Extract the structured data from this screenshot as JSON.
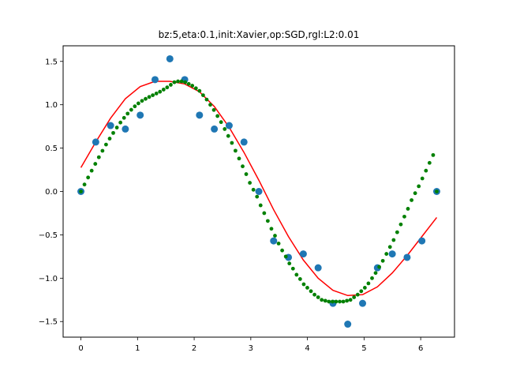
{
  "chart_data": {
    "type": "scatter",
    "title": "bz:5,eta:0.1,init:Xavier,op:SGD,rgl:L2:0.01",
    "xlabel": "",
    "ylabel": "",
    "xlim": [
      -0.314,
      6.597
    ],
    "ylim": [
      -1.68,
      1.68
    ],
    "xticks": [
      0,
      1,
      2,
      3,
      4,
      5,
      6
    ],
    "yticks": [
      -1.5,
      -1.0,
      -0.5,
      0.0,
      0.5,
      1.0,
      1.5
    ],
    "xtick_labels": [
      "0",
      "1",
      "2",
      "3",
      "4",
      "5",
      "6"
    ],
    "ytick_labels": [
      "−1.5",
      "−1.0",
      "−0.5",
      "0.0",
      "0.5",
      "1.0",
      "1.5"
    ],
    "grid": false,
    "series": [
      {
        "kind": "scatter-large",
        "color": "#1f77b4",
        "x": [
          0.0,
          0.262,
          0.524,
          0.785,
          1.047,
          1.309,
          1.571,
          1.833,
          2.094,
          2.356,
          2.618,
          2.88,
          3.142,
          3.403,
          3.665,
          3.927,
          4.189,
          4.451,
          4.712,
          4.974,
          5.236,
          5.498,
          5.76,
          6.021,
          6.283
        ],
        "y": [
          0.0,
          0.57,
          0.76,
          0.72,
          0.88,
          1.29,
          1.53,
          1.29,
          0.88,
          0.72,
          0.76,
          0.57,
          0.0,
          -0.57,
          -0.76,
          -0.72,
          -0.88,
          -1.29,
          -1.53,
          -1.29,
          -0.88,
          -0.72,
          -0.76,
          -0.57,
          0.0
        ]
      },
      {
        "kind": "line",
        "color": "#ff0000",
        "x": [
          0.0,
          0.262,
          0.524,
          0.785,
          1.047,
          1.309,
          1.571,
          1.833,
          2.094,
          2.356,
          2.618,
          2.88,
          3.142,
          3.403,
          3.665,
          3.927,
          4.189,
          4.451,
          4.712,
          4.974,
          5.236,
          5.498,
          5.76,
          6.021,
          6.283
        ],
        "y": [
          0.275,
          0.57,
          0.845,
          1.07,
          1.21,
          1.27,
          1.27,
          1.24,
          1.15,
          0.98,
          0.74,
          0.45,
          0.13,
          -0.21,
          -0.52,
          -0.79,
          -1.0,
          -1.14,
          -1.2,
          -1.19,
          -1.1,
          -0.94,
          -0.74,
          -0.52,
          -0.3
        ]
      },
      {
        "kind": "scatter-small",
        "color": "#008000",
        "x": [
          0.0,
          0.063,
          0.127,
          0.19,
          0.254,
          0.317,
          0.381,
          0.444,
          0.508,
          0.571,
          0.635,
          0.698,
          0.762,
          0.825,
          0.889,
          0.952,
          1.015,
          1.079,
          1.142,
          1.206,
          1.269,
          1.333,
          1.396,
          1.46,
          1.523,
          1.587,
          1.65,
          1.714,
          1.777,
          1.841,
          1.904,
          1.967,
          2.031,
          2.094,
          2.158,
          2.221,
          2.285,
          2.348,
          2.412,
          2.475,
          2.539,
          2.602,
          2.666,
          2.729,
          2.793,
          2.856,
          2.919,
          2.983,
          3.046,
          3.11,
          3.173,
          3.237,
          3.3,
          3.364,
          3.427,
          3.491,
          3.554,
          3.618,
          3.681,
          3.745,
          3.808,
          3.871,
          3.935,
          3.998,
          4.062,
          4.125,
          4.189,
          4.252,
          4.316,
          4.379,
          4.443,
          4.506,
          4.57,
          4.633,
          4.697,
          4.76,
          4.823,
          4.887,
          4.95,
          5.014,
          5.077,
          5.141,
          5.204,
          5.268,
          5.331,
          5.395,
          5.458,
          5.522,
          5.585,
          5.649,
          5.712,
          5.775,
          5.839,
          5.902,
          5.966,
          6.029,
          6.093,
          6.156,
          6.22,
          6.283
        ],
        "y": [
          0.0,
          0.08,
          0.161,
          0.24,
          0.318,
          0.395,
          0.469,
          0.541,
          0.61,
          0.675,
          0.737,
          0.795,
          0.849,
          0.898,
          0.942,
          0.982,
          1.016,
          1.045,
          1.068,
          1.09,
          1.11,
          1.13,
          1.15,
          1.175,
          1.2,
          1.23,
          1.26,
          1.27,
          1.27,
          1.26,
          1.24,
          1.22,
          1.19,
          1.16,
          1.11,
          1.06,
          1.0,
          0.94,
          0.87,
          0.8,
          0.72,
          0.64,
          0.56,
          0.47,
          0.38,
          0.29,
          0.2,
          0.1,
          0.02,
          -0.06,
          -0.16,
          -0.25,
          -0.34,
          -0.43,
          -0.51,
          -0.6,
          -0.68,
          -0.75,
          -0.83,
          -0.89,
          -0.96,
          -1.01,
          -1.07,
          -1.11,
          -1.15,
          -1.19,
          -1.22,
          -1.25,
          -1.26,
          -1.27,
          -1.27,
          -1.27,
          -1.27,
          -1.27,
          -1.26,
          -1.25,
          -1.22,
          -1.19,
          -1.15,
          -1.11,
          -1.06,
          -1.0,
          -0.94,
          -0.87,
          -0.8,
          -0.72,
          -0.64,
          -0.56,
          -0.47,
          -0.38,
          -0.29,
          -0.2,
          -0.1,
          -0.02,
          0.06,
          0.15,
          0.24,
          0.33,
          0.42,
          0.0
        ]
      }
    ]
  }
}
